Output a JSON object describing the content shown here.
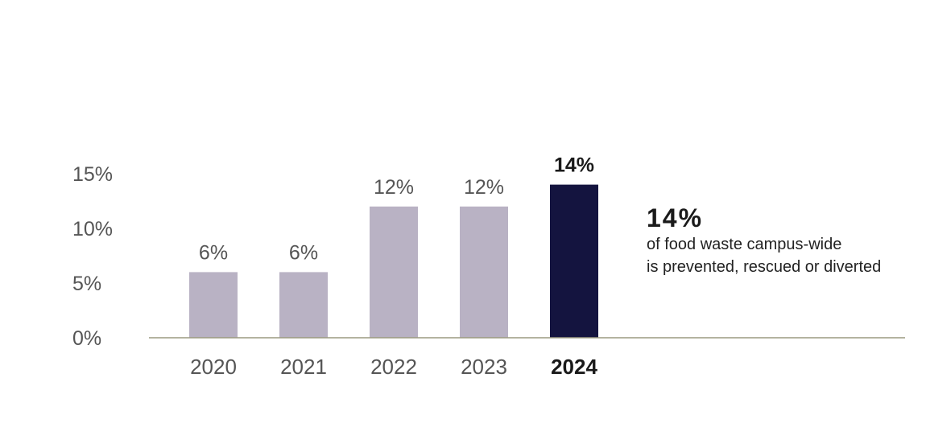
{
  "chart_data": {
    "type": "bar",
    "categories": [
      "2020",
      "2021",
      "2022",
      "2023",
      "2024"
    ],
    "values": [
      6,
      6,
      12,
      12,
      14
    ],
    "value_labels": [
      "6%",
      "6%",
      "12%",
      "12%",
      "14%"
    ],
    "highlight_index": 4,
    "ylim": [
      0,
      15
    ],
    "y_ticks": [
      0,
      5,
      10,
      15
    ],
    "y_tick_labels": [
      "0%",
      "5%",
      "10%",
      "15%"
    ],
    "grid": false,
    "colors": {
      "bar": "#b9b2c4",
      "highlight": "#14143f",
      "axis": "#9c9a80"
    }
  },
  "callout": {
    "value": "14%",
    "line1": "of food waste campus-wide",
    "line2": "is prevented, rescued or diverted"
  }
}
